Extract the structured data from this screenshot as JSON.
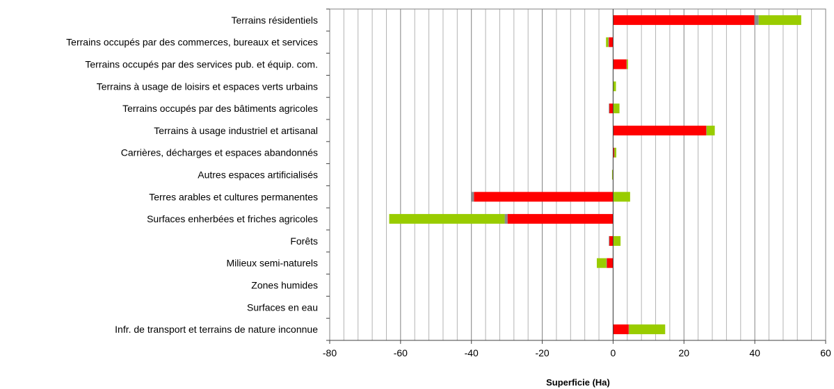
{
  "chart_data": {
    "type": "bar",
    "orientation": "horizontal",
    "stacked": true,
    "xlabel": "Superficie (Ha)",
    "xlim": [
      -80,
      60
    ],
    "xticks": [
      -80,
      -60,
      -40,
      -20,
      0,
      20,
      40,
      60
    ],
    "minor_gridline_step": 4,
    "grid": true,
    "categories": [
      "Terrains résidentiels",
      "Terrains occupés par des commerces, bureaux et services",
      "Terrains occupés par des services pub. et équip. com.",
      "Terrains à usage de loisirs et espaces verts urbains",
      "Terrains occupés par des bâtiments agricoles",
      "Terrains à usage industriel et artisanal",
      "Carrières, décharges et espaces abandonnés",
      "Autres espaces artificialisés",
      "Terres arables et cultures permanentes",
      "Surfaces enherbées et friches agricoles",
      "Forêts",
      "Milieux semi-naturels",
      "Zones humides",
      "Surfaces en eau",
      "Infr. de transport et terrains de nature inconnue"
    ],
    "series": [
      {
        "color": "#ff0000",
        "values": [
          39.9,
          -1.2,
          3.8,
          0,
          -1.1,
          26.3,
          0.3,
          -0.1,
          -39.3,
          -29.8,
          -1.1,
          -1.8,
          0,
          0,
          4.4
        ]
      },
      {
        "color": "#8c8c8c",
        "values": [
          1.2,
          -0.2,
          0.1,
          0,
          -0.1,
          0.1,
          0.1,
          -0.1,
          -0.8,
          -0.8,
          -0.1,
          -0.1,
          0,
          0,
          0.1
        ]
      },
      {
        "color": "#99cc00",
        "values": [
          12.0,
          -0.6,
          0.3,
          0.8,
          1.8,
          2.3,
          0.5,
          -0.1,
          4.8,
          -32.6,
          2.1,
          -2.7,
          0,
          0,
          10.2
        ]
      }
    ]
  }
}
